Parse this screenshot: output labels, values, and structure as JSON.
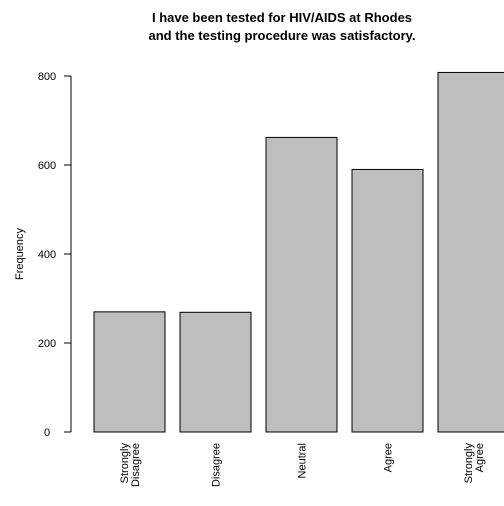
{
  "chart_data": {
    "type": "bar",
    "title_lines": [
      "I have been tested for  HIV/AIDS at Rhodes",
      "and the testing procedure was satisfactory."
    ],
    "ylabel": "Frequency",
    "xlabel": "",
    "ylim": [
      0,
      800
    ],
    "yticks": [
      0,
      200,
      400,
      600,
      800
    ],
    "categories": [
      [
        "Strongly",
        "Disagree"
      ],
      [
        "Disagree"
      ],
      [
        "Neutral"
      ],
      [
        "Agree"
      ],
      [
        "Strongly",
        "Agree"
      ]
    ],
    "values": [
      270,
      269,
      662,
      590,
      808
    ],
    "bar_color": "#bebebe",
    "grid": false
  }
}
